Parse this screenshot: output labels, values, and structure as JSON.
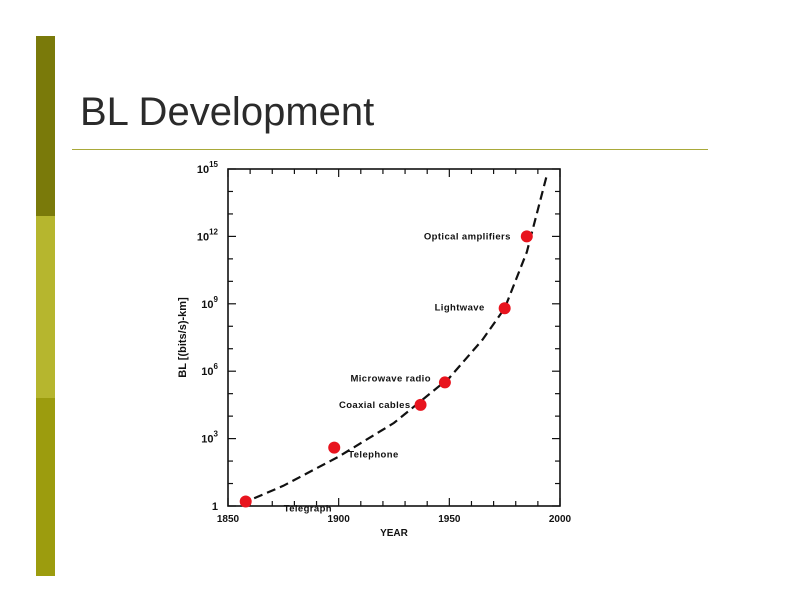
{
  "slide": {
    "title": "BL Development",
    "accent_colors": [
      "#7a7a0a",
      "#b6b62e",
      "#9c9c0e"
    ],
    "rule_color": "#a9a93a"
  },
  "chart_data": {
    "type": "scatter",
    "title": "",
    "xlabel": "YEAR",
    "ylabel": "BL [(bits/s)-km]",
    "xlim": [
      1850,
      2000
    ],
    "ylim_log10": [
      0,
      15
    ],
    "y_scale": "log",
    "x_ticks": [
      {
        "value": 1850,
        "label": "1850"
      },
      {
        "value": 1900,
        "label": "1900"
      },
      {
        "value": 1950,
        "label": "1950"
      },
      {
        "value": 2000,
        "label": "2000"
      }
    ],
    "y_ticks": [
      {
        "exp": 0,
        "label": "1"
      },
      {
        "exp": 3,
        "base": "10",
        "sup": "3"
      },
      {
        "exp": 6,
        "base": "10",
        "sup": "6"
      },
      {
        "exp": 9,
        "base": "10",
        "sup": "9"
      },
      {
        "exp": 12,
        "base": "10",
        "sup": "12"
      },
      {
        "exp": 15,
        "base": "10",
        "sup": "15"
      }
    ],
    "points": [
      {
        "label": "Telegraph",
        "year": 1858,
        "bl_log10": 0.2
      },
      {
        "label": "Telephone",
        "year": 1898,
        "bl_log10": 2.6
      },
      {
        "label": "Coaxial cables",
        "year": 1937,
        "bl_log10": 4.5
      },
      {
        "label": "Microwave radio",
        "year": 1948,
        "bl_log10": 5.5
      },
      {
        "label": "Lightwave",
        "year": 1975,
        "bl_log10": 8.8
      },
      {
        "label": "Optical amplifiers",
        "year": 1985,
        "bl_log10": 12.0
      }
    ],
    "trend_curve": [
      [
        1856,
        0.1
      ],
      [
        1875,
        0.9
      ],
      [
        1900,
        2.2
      ],
      [
        1925,
        3.7
      ],
      [
        1950,
        5.7
      ],
      [
        1965,
        7.4
      ],
      [
        1975,
        8.8
      ],
      [
        1985,
        11.3
      ],
      [
        1994,
        14.7
      ]
    ],
    "marker_color": "#e8141e"
  }
}
